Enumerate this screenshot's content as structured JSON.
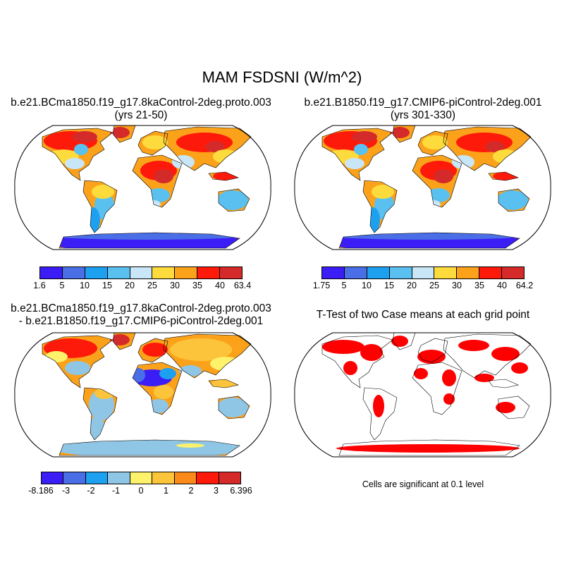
{
  "title": "MAM FSDSNI (W/m^2)",
  "panels": [
    {
      "title_line1": "b.e21.BCma1850.f19_g17.8kaControl-2deg.proto.003",
      "title_line2": "(yrs 21-50)",
      "colorbar": {
        "labels": [
          "1.6",
          "5",
          "10",
          "15",
          "20",
          "25",
          "30",
          "35",
          "40",
          "63.4"
        ],
        "colors": [
          "#3b1ef5",
          "#4a6ee6",
          "#1ea0f0",
          "#5ac0ef",
          "#c8e6f7",
          "#fedb3c",
          "#fba21a",
          "#fe1a0a",
          "#d42a2a"
        ]
      }
    },
    {
      "title_line1": "b.e21.B1850.f19_g17.CMIP6-piControl-2deg.001",
      "title_line2": "(yrs 301-330)",
      "colorbar": {
        "labels": [
          "1.75",
          "5",
          "10",
          "15",
          "20",
          "25",
          "30",
          "35",
          "40",
          "64.2"
        ],
        "colors": [
          "#3b1ef5",
          "#4a6ee6",
          "#1ea0f0",
          "#5ac0ef",
          "#c8e6f7",
          "#fedb3c",
          "#fba21a",
          "#fe1a0a",
          "#d42a2a"
        ]
      }
    },
    {
      "title_line1": "b.e21.BCma1850.f19_g17.8kaControl-2deg.proto.003",
      "title_line2": "- b.e21.B1850.f19_g17.CMIP6-piControl-2deg.001",
      "colorbar": {
        "labels": [
          "-8.186",
          "-3",
          "-2",
          "-1",
          "0",
          "1",
          "2",
          "3",
          "6.396"
        ],
        "colors": [
          "#3b1ef5",
          "#4a6ee6",
          "#1ea0f0",
          "#8fc6e6",
          "#fdf26a",
          "#fcc43a",
          "#fb8a1a",
          "#fe1a0a",
          "#d42a2a"
        ]
      }
    },
    {
      "title_line1": "T-Test of two Case means at each grid point",
      "title_line2": "",
      "note": "Cells are significant at 0.1 level"
    }
  ]
}
